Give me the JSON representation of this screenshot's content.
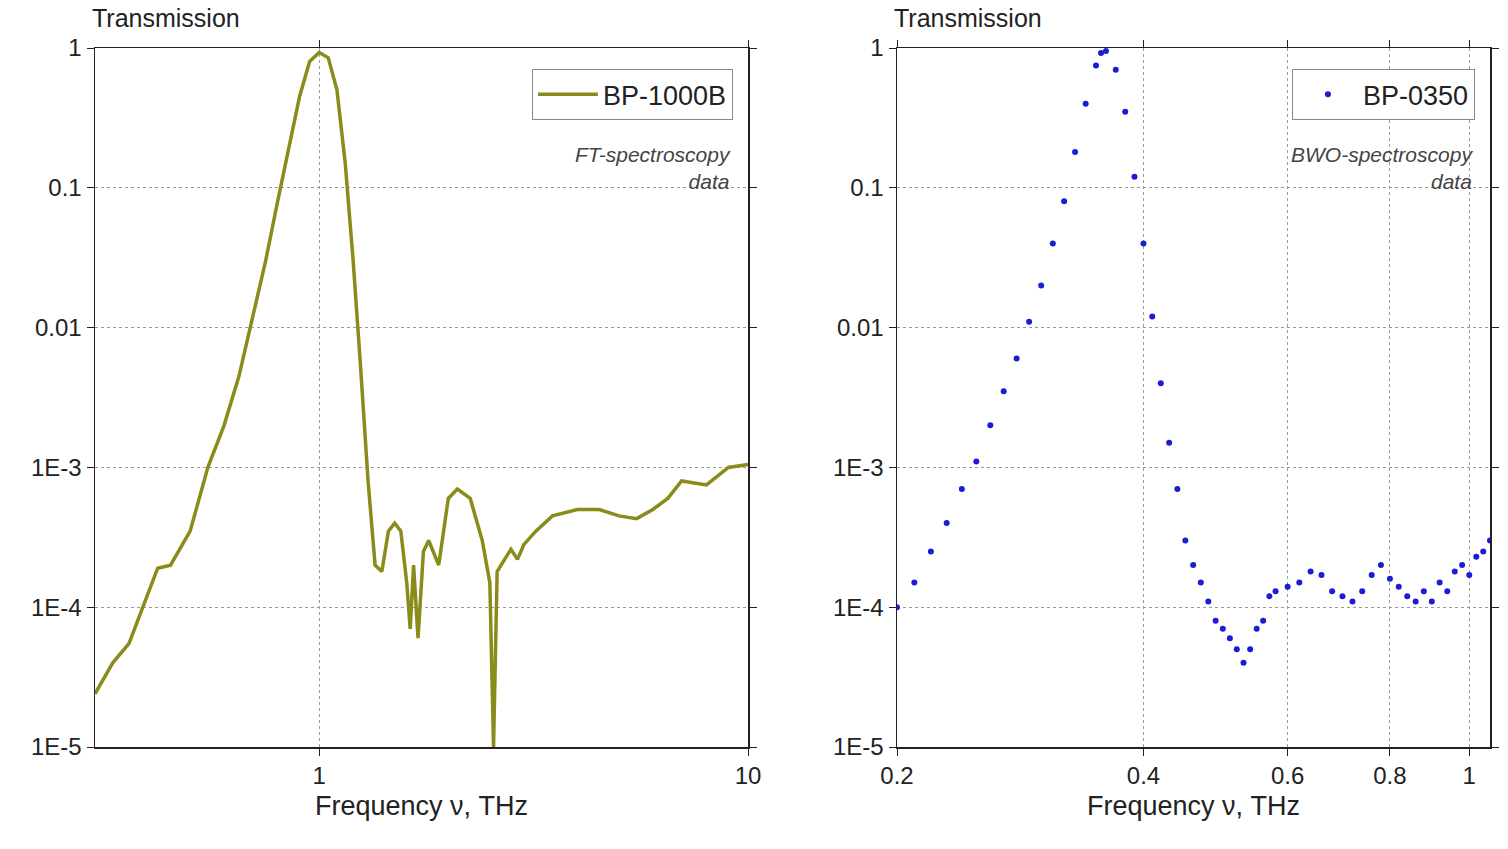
{
  "chart_data": [
    {
      "type": "line",
      "ylabel": "Transmission",
      "xlabel": "Frequency ν, THz",
      "annotations": [
        "FT-spectroscopy\ndata"
      ],
      "x": [
        0.3,
        0.33,
        0.36,
        0.4,
        0.42,
        0.45,
        0.5,
        0.55,
        0.6,
        0.65,
        0.7,
        0.75,
        0.8,
        0.85,
        0.9,
        0.95,
        1.0,
        1.05,
        1.1,
        1.15,
        1.2,
        1.25,
        1.3,
        1.35,
        1.4,
        1.45,
        1.5,
        1.55,
        1.6,
        1.63,
        1.66,
        1.7,
        1.75,
        1.8,
        1.9,
        2.0,
        2.1,
        2.25,
        2.4,
        2.5,
        2.55,
        2.6,
        2.7,
        2.8,
        2.9,
        3.0,
        3.2,
        3.5,
        4.0,
        4.5,
        5.0,
        5.5,
        6.0,
        6.5,
        7.0,
        8.0,
        9.0,
        10.0
      ],
      "series": [
        {
          "name": "BP-1000B",
          "color": "#8b8b1a",
          "values": [
            2.4e-05,
            4e-05,
            5.5e-05,
            0.00013,
            0.00019,
            0.0002,
            0.00035,
            0.001,
            0.002,
            0.0045,
            0.012,
            0.03,
            0.08,
            0.2,
            0.45,
            0.8,
            0.93,
            0.85,
            0.5,
            0.15,
            0.03,
            0.005,
            0.0008,
            0.0002,
            0.00018,
            0.00035,
            0.0004,
            0.00035,
            0.00015,
            7e-05,
            0.0002,
            6e-05,
            0.00025,
            0.0003,
            0.0002,
            0.0006,
            0.0007,
            0.0006,
            0.0003,
            0.00015,
            1e-05,
            0.00018,
            0.00022,
            0.00026,
            0.00022,
            0.00028,
            0.00035,
            0.00045,
            0.0005,
            0.0005,
            0.00045,
            0.00043,
            0.0005,
            0.0006,
            0.0008,
            0.00075,
            0.001,
            0.00105
          ]
        }
      ],
      "xlim": [
        0.3,
        10
      ],
      "xticks": [
        1,
        10
      ],
      "ylim": [
        1e-05,
        1
      ],
      "yticks": [
        {
          "value": 1e-05,
          "label": "1E-5"
        },
        {
          "value": 0.0001,
          "label": "1E-4"
        },
        {
          "value": 0.001,
          "label": "1E-3"
        },
        0.01,
        0.1,
        1
      ],
      "log": true,
      "grid": true,
      "legend": "upper right"
    },
    {
      "type": "scatter",
      "ylabel": "Transmission",
      "xlabel": "Frequency ν, THz",
      "annotations": [
        "BWO-spectroscopy\ndata"
      ],
      "x": [
        0.2,
        0.21,
        0.22,
        0.23,
        0.24,
        0.25,
        0.26,
        0.27,
        0.28,
        0.29,
        0.3,
        0.31,
        0.32,
        0.33,
        0.34,
        0.35,
        0.355,
        0.36,
        0.37,
        0.38,
        0.39,
        0.4,
        0.41,
        0.42,
        0.43,
        0.44,
        0.45,
        0.46,
        0.47,
        0.48,
        0.49,
        0.5,
        0.51,
        0.52,
        0.53,
        0.54,
        0.55,
        0.56,
        0.57,
        0.58,
        0.6,
        0.62,
        0.64,
        0.66,
        0.68,
        0.7,
        0.72,
        0.74,
        0.76,
        0.78,
        0.8,
        0.82,
        0.84,
        0.86,
        0.88,
        0.9,
        0.92,
        0.94,
        0.96,
        0.98,
        1.0,
        1.02,
        1.04,
        1.06
      ],
      "series": [
        {
          "name": "BP-0350",
          "color": "#1c1cd6",
          "marker": "circle",
          "values": [
            0.0001,
            0.00015,
            0.00025,
            0.0004,
            0.0007,
            0.0011,
            0.002,
            0.0035,
            0.006,
            0.011,
            0.02,
            0.04,
            0.08,
            0.18,
            0.4,
            0.75,
            0.92,
            0.95,
            0.7,
            0.35,
            0.12,
            0.04,
            0.012,
            0.004,
            0.0015,
            0.0007,
            0.0003,
            0.0002,
            0.00015,
            0.00011,
            8e-05,
            7e-05,
            6e-05,
            5e-05,
            4e-05,
            5e-05,
            7e-05,
            8e-05,
            0.00012,
            0.00013,
            0.00014,
            0.00015,
            0.00018,
            0.00017,
            0.00013,
            0.00012,
            0.00011,
            0.00013,
            0.00017,
            0.0002,
            0.00016,
            0.00014,
            0.00012,
            0.00011,
            0.00013,
            0.00011,
            0.00015,
            0.00013,
            0.00018,
            0.0002,
            0.00017,
            0.00023,
            0.00025,
            0.0003
          ]
        }
      ],
      "xlim": [
        0.2,
        1.06
      ],
      "xticks": [
        0.2,
        0.4,
        0.6,
        0.8,
        1
      ],
      "ylim": [
        1e-05,
        1
      ],
      "yticks": [
        {
          "value": 1e-05,
          "label": "1E-5"
        },
        {
          "value": 0.0001,
          "label": "1E-4"
        },
        {
          "value": 0.001,
          "label": "1E-3"
        },
        0.01,
        0.1,
        1
      ],
      "log": true,
      "grid": true,
      "legend": "upper right"
    }
  ]
}
